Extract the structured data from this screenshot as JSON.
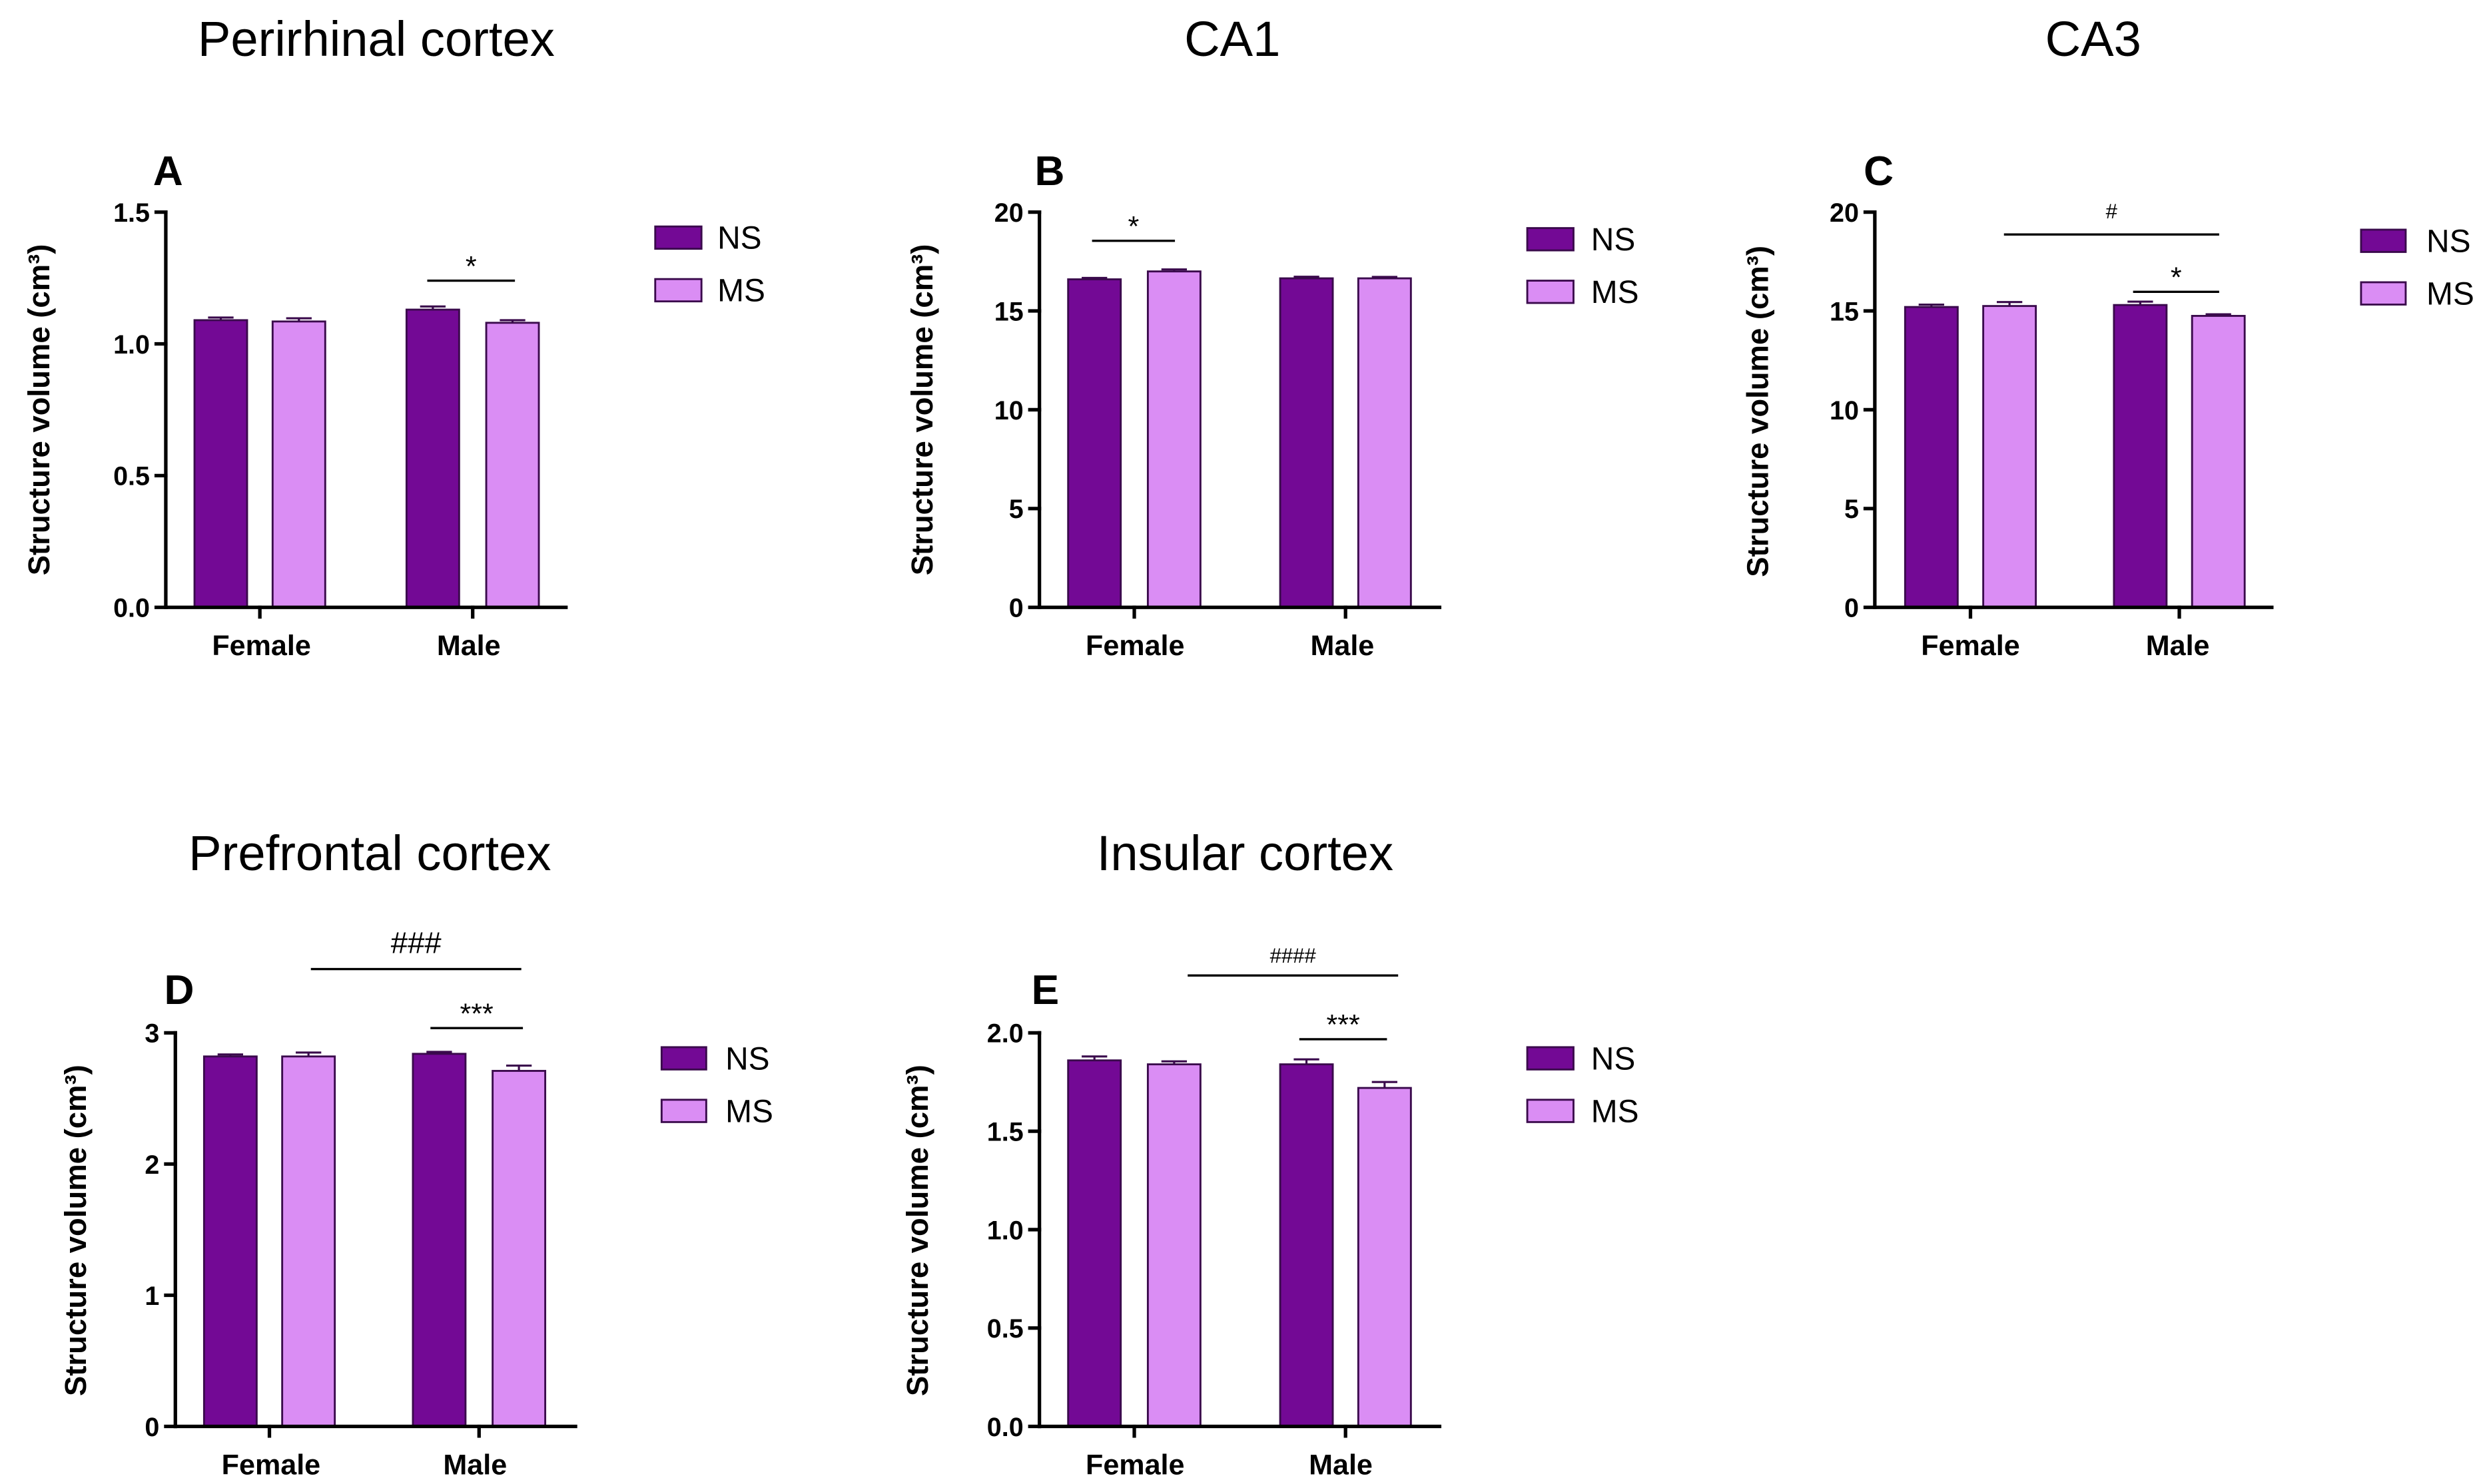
{
  "colors": {
    "NS": "#730995",
    "MS": "#da8df4",
    "outline": "#3a0a4c"
  },
  "chart_data": [
    {
      "panel": "A",
      "type": "bar",
      "title": "Perirhinal cortex",
      "ylabel": "Structure volume (cm³)",
      "categories": [
        "Female",
        "Male"
      ],
      "series": [
        {
          "name": "NS",
          "values": [
            1.09,
            1.13
          ],
          "errors": [
            0.01,
            0.012
          ]
        },
        {
          "name": "MS",
          "values": [
            1.085,
            1.08
          ],
          "errors": [
            0.012,
            0.01
          ]
        }
      ],
      "ylim": [
        0,
        1.5
      ],
      "yticks": [
        0,
        0.5,
        1.0,
        1.5
      ],
      "ytick_labels": [
        "0.0",
        "0.5",
        "1.0",
        "1.5"
      ],
      "significance": [
        {
          "label": "*",
          "from": [
            "Male",
            "NS"
          ],
          "to": [
            "Male",
            "MS"
          ]
        }
      ]
    },
    {
      "panel": "B",
      "type": "bar",
      "title": "CA1",
      "ylabel": "Structure volume (cm³)",
      "categories": [
        "Female",
        "Male"
      ],
      "series": [
        {
          "name": "NS",
          "values": [
            16.6,
            16.65
          ],
          "errors": [
            0.07,
            0.08
          ]
        },
        {
          "name": "MS",
          "values": [
            17.0,
            16.65
          ],
          "errors": [
            0.1,
            0.07
          ]
        }
      ],
      "ylim": [
        0,
        20
      ],
      "yticks": [
        0,
        5,
        10,
        15,
        20
      ],
      "ytick_labels": [
        "0",
        "5",
        "10",
        "15",
        "20"
      ],
      "significance": [
        {
          "label": "*",
          "from": [
            "Female",
            "NS"
          ],
          "to": [
            "Female",
            "MS"
          ]
        }
      ]
    },
    {
      "panel": "C",
      "type": "bar",
      "title": "CA3",
      "ylabel": "Structure volume (cm³)",
      "categories": [
        "Female",
        "Male"
      ],
      "series": [
        {
          "name": "NS",
          "values": [
            15.2,
            15.3
          ],
          "errors": [
            0.12,
            0.17
          ]
        },
        {
          "name": "MS",
          "values": [
            15.25,
            14.75
          ],
          "errors": [
            0.2,
            0.08
          ]
        }
      ],
      "ylim": [
        0,
        20
      ],
      "yticks": [
        0,
        5,
        10,
        15,
        20
      ],
      "ytick_labels": [
        "0",
        "5",
        "10",
        "15",
        "20"
      ],
      "significance": [
        {
          "label": "#",
          "from": [
            "Female",
            "MS"
          ],
          "to": [
            "Male",
            "MS"
          ]
        },
        {
          "label": "*",
          "from": [
            "Male",
            "NS"
          ],
          "to": [
            "Male",
            "MS"
          ]
        }
      ]
    },
    {
      "panel": "D",
      "type": "bar",
      "title": "Prefrontal cortex",
      "ylabel": "Structure volume (cm³)",
      "categories": [
        "Female",
        "Male"
      ],
      "series": [
        {
          "name": "NS",
          "values": [
            2.82,
            2.84
          ],
          "errors": [
            0.015,
            0.015
          ]
        },
        {
          "name": "MS",
          "values": [
            2.82,
            2.71
          ],
          "errors": [
            0.03,
            0.04
          ]
        }
      ],
      "ylim": [
        0,
        3
      ],
      "yticks": [
        0,
        1,
        2,
        3
      ],
      "ytick_labels": [
        "0",
        "1",
        "2",
        "3"
      ],
      "significance": [
        {
          "label": "###",
          "from": [
            "Female",
            "MS"
          ],
          "to": [
            "Male",
            "MS"
          ]
        },
        {
          "label": "***",
          "from": [
            "Male",
            "NS"
          ],
          "to": [
            "Male",
            "MS"
          ]
        }
      ]
    },
    {
      "panel": "E",
      "type": "bar",
      "title": "Insular cortex",
      "ylabel": "Structure volume (cm³)",
      "categories": [
        "Female",
        "Male"
      ],
      "series": [
        {
          "name": "NS",
          "values": [
            1.86,
            1.84
          ],
          "errors": [
            0.02,
            0.025
          ]
        },
        {
          "name": "MS",
          "values": [
            1.84,
            1.72
          ],
          "errors": [
            0.015,
            0.03
          ]
        }
      ],
      "ylim": [
        0,
        2.0
      ],
      "yticks": [
        0,
        0.5,
        1.0,
        1.5,
        2.0
      ],
      "ytick_labels": [
        "0.0",
        "0.5",
        "1.0",
        "1.5",
        "2.0"
      ],
      "significance": [
        {
          "label": "####",
          "from": [
            "Female",
            "MS"
          ],
          "to": [
            "Male",
            "MS"
          ]
        },
        {
          "label": "***",
          "from": [
            "Male",
            "NS"
          ],
          "to": [
            "Male",
            "MS"
          ]
        }
      ]
    }
  ]
}
